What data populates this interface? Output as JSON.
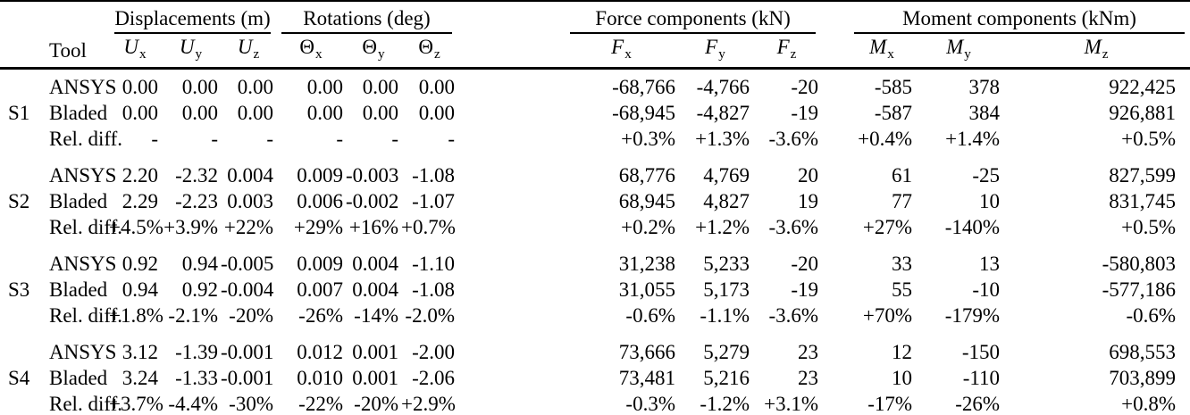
{
  "colors": {
    "text": "#000000",
    "background": "#ffffff",
    "rules": "#000000"
  },
  "table": {
    "tool_header": "Tool",
    "column_groups": [
      {
        "label": "Displacements (m)",
        "columns": [
          {
            "base": "U",
            "sub": "x"
          },
          {
            "base": "U",
            "sub": "y"
          },
          {
            "base": "U",
            "sub": "z"
          }
        ]
      },
      {
        "label": "Rotations (deg)",
        "columns": [
          {
            "base": "Θ",
            "sub": "x"
          },
          {
            "base": "Θ",
            "sub": "y"
          },
          {
            "base": "Θ",
            "sub": "z"
          }
        ]
      },
      {
        "label": "Force components (kN)",
        "columns": [
          {
            "base": "F",
            "sub": "x"
          },
          {
            "base": "F",
            "sub": "y"
          },
          {
            "base": "F",
            "sub": "z"
          }
        ]
      },
      {
        "label": "Moment components (kNm)",
        "columns": [
          {
            "base": "M",
            "sub": "x"
          },
          {
            "base": "M",
            "sub": "y"
          },
          {
            "base": "M",
            "sub": "z"
          }
        ]
      }
    ],
    "row_groups": [
      {
        "label": "S1",
        "rows": [
          {
            "tool": "ANSYS",
            "values": [
              "0.00",
              "0.00",
              "0.00",
              "0.00",
              "0.00",
              "0.00",
              "-68,766",
              "-4,766",
              "-20",
              "-585",
              "378",
              "922,425"
            ]
          },
          {
            "tool": "Bladed",
            "values": [
              "0.00",
              "0.00",
              "0.00",
              "0.00",
              "0.00",
              "0.00",
              "-68,945",
              "-4,827",
              "-19",
              "-587",
              "384",
              "926,881"
            ]
          },
          {
            "tool": "Rel. diff.",
            "values": [
              "-",
              "-",
              "-",
              "-",
              "-",
              "-",
              "+0.3%",
              "+1.3%",
              "-3.6%",
              "+0.4%",
              "+1.4%",
              "+0.5%"
            ]
          }
        ]
      },
      {
        "label": "S2",
        "rows": [
          {
            "tool": "ANSYS",
            "values": [
              "2.20",
              "-2.32",
              "0.004",
              "0.009",
              "-0.003",
              "-1.08",
              "68,776",
              "4,769",
              "20",
              "61",
              "-25",
              "827,599"
            ]
          },
          {
            "tool": "Bladed",
            "values": [
              "2.29",
              "-2.23",
              "0.003",
              "0.006",
              "-0.002",
              "-1.07",
              "68,945",
              "4,827",
              "19",
              "77",
              "10",
              "831,745"
            ]
          },
          {
            "tool": "Rel. diff.",
            "values": [
              "+4.5%",
              "+3.9%",
              "+22%",
              "+29%",
              "+16%",
              "+0.7%",
              "+0.2%",
              "+1.2%",
              "-3.6%",
              "+27%",
              "-140%",
              "+0.5%"
            ]
          }
        ]
      },
      {
        "label": "S3",
        "rows": [
          {
            "tool": "ANSYS",
            "values": [
              "0.92",
              "0.94",
              "-0.005",
              "0.009",
              "0.004",
              "-1.10",
              "31,238",
              "5,233",
              "-20",
              "33",
              "13",
              "-580,803"
            ]
          },
          {
            "tool": "Bladed",
            "values": [
              "0.94",
              "0.92",
              "-0.004",
              "0.007",
              "0.004",
              "-1.08",
              "31,055",
              "5,173",
              "-19",
              "55",
              "-10",
              "-577,186"
            ]
          },
          {
            "tool": "Rel. diff.",
            "values": [
              "+1.8%",
              "-2.1%",
              "-20%",
              "-26%",
              "-14%",
              "-2.0%",
              "-0.6%",
              "-1.1%",
              "-3.6%",
              "+70%",
              "-179%",
              "-0.6%"
            ]
          }
        ]
      },
      {
        "label": "S4",
        "rows": [
          {
            "tool": "ANSYS",
            "values": [
              "3.12",
              "-1.39",
              "-0.001",
              "0.012",
              "0.001",
              "-2.00",
              "73,666",
              "5,279",
              "23",
              "12",
              "-150",
              "698,553"
            ]
          },
          {
            "tool": "Bladed",
            "values": [
              "3.24",
              "-1.33",
              "-0.001",
              "0.010",
              "0.001",
              "-2.06",
              "73,481",
              "5,216",
              "23",
              "10",
              "-110",
              "703,899"
            ]
          },
          {
            "tool": "Rel. diff.",
            "values": [
              "+3.7%",
              "-4.4%",
              "-30%",
              "-22%",
              "-20%",
              "+2.9%",
              "-0.3%",
              "-1.2%",
              "+3.1%",
              "-17%",
              "-26%",
              "+0.8%"
            ]
          }
        ]
      }
    ]
  }
}
